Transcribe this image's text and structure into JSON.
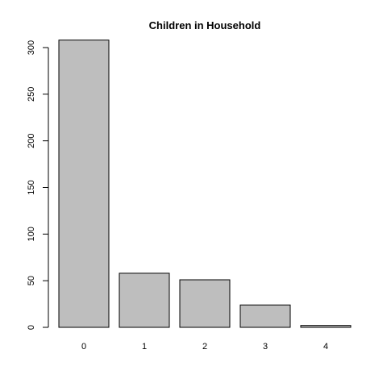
{
  "chart_data": {
    "type": "bar",
    "title": "Children in Household",
    "xlabel": "",
    "ylabel": "",
    "categories": [
      "0",
      "1",
      "2",
      "3",
      "4"
    ],
    "values": [
      308,
      58,
      51,
      24,
      2
    ],
    "ylim": [
      0,
      300
    ],
    "y_ticks": [
      "0",
      "50",
      "100",
      "150",
      "200",
      "250",
      "300"
    ],
    "bar_fill": "#bebebe",
    "bar_stroke": "#000000",
    "grid": false,
    "legend": "none"
  }
}
